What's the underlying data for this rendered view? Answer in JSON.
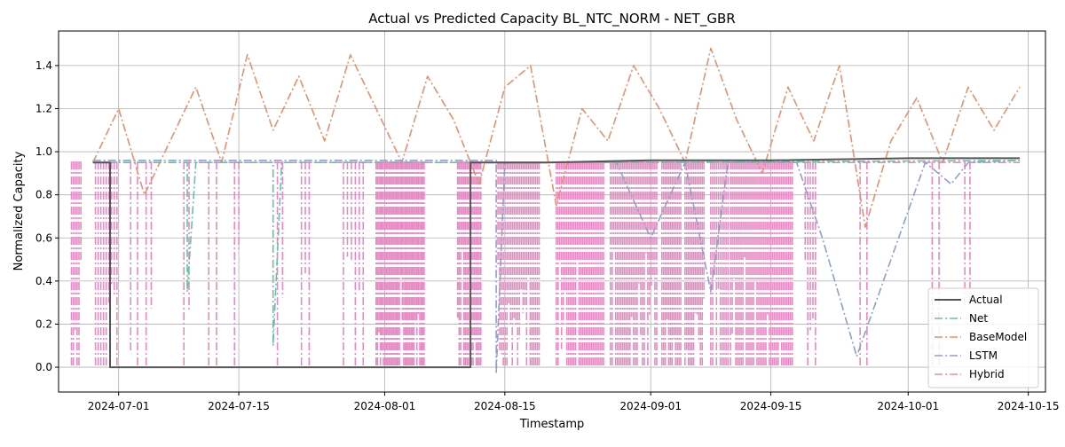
{
  "chart_data": {
    "type": "line",
    "title": "Actual vs Predicted Capacity BL_NTC_NORM - NET_GBR",
    "xlabel": "Timestamp",
    "ylabel": "Normalized Capacity",
    "xlim": [
      "2024-06-24",
      "2024-10-17"
    ],
    "ylim": [
      -0.115,
      1.56
    ],
    "x_ticks": [
      "2024-07-01",
      "2024-07-15",
      "2024-08-01",
      "2024-08-15",
      "2024-09-01",
      "2024-09-15",
      "2024-10-01",
      "2024-10-15"
    ],
    "y_ticks": [
      0.0,
      0.2,
      0.4,
      0.6,
      0.8,
      1.0,
      1.2,
      1.4
    ],
    "y_tick_labels": [
      "0.0",
      "0.2",
      "0.4",
      "0.6",
      "0.8",
      "1.0",
      "1.2",
      "1.4"
    ],
    "grid": true,
    "legend_position": "bottom-right",
    "series": [
      {
        "name": "Actual",
        "color": "#555555",
        "style": "solid",
        "x": [
          "2024-06-28",
          "2024-06-30",
          "2024-06-30",
          "2024-08-11",
          "2024-08-11",
          "2024-08-20",
          "2024-09-01",
          "2024-09-15",
          "2024-10-01",
          "2024-10-14"
        ],
        "values": [
          0.95,
          0.95,
          0.0,
          0.0,
          0.95,
          0.95,
          0.96,
          0.96,
          0.97,
          0.97
        ]
      },
      {
        "name": "Net",
        "color": "#66c2a5",
        "style": "dashdot",
        "x": [
          "2024-06-28",
          "2024-07-09",
          "2024-07-09",
          "2024-07-10",
          "2024-07-19",
          "2024-07-19",
          "2024-07-20",
          "2024-08-01",
          "2024-09-01",
          "2024-10-14"
        ],
        "values": [
          0.95,
          0.95,
          0.35,
          0.95,
          0.95,
          0.1,
          0.95,
          0.95,
          0.95,
          0.96
        ]
      },
      {
        "name": "BaseModel",
        "color": "#e5916c",
        "style": "dashdot",
        "x": [
          "2024-06-28",
          "2024-07-01",
          "2024-07-04",
          "2024-07-07",
          "2024-07-10",
          "2024-07-13",
          "2024-07-16",
          "2024-07-19",
          "2024-07-22",
          "2024-07-25",
          "2024-07-28",
          "2024-07-31",
          "2024-08-03",
          "2024-08-06",
          "2024-08-09",
          "2024-08-12",
          "2024-08-15",
          "2024-08-18",
          "2024-08-21",
          "2024-08-24",
          "2024-08-27",
          "2024-08-30",
          "2024-09-02",
          "2024-09-05",
          "2024-09-08",
          "2024-09-11",
          "2024-09-14",
          "2024-09-17",
          "2024-09-20",
          "2024-09-23",
          "2024-09-26",
          "2024-09-29",
          "2024-10-02",
          "2024-10-05",
          "2024-10-08",
          "2024-10-11",
          "2024-10-14"
        ],
        "values": [
          0.95,
          1.2,
          0.8,
          1.05,
          1.3,
          0.95,
          1.45,
          1.1,
          1.35,
          1.05,
          1.45,
          1.2,
          0.95,
          1.35,
          1.15,
          0.85,
          1.3,
          1.4,
          0.75,
          1.2,
          1.05,
          1.4,
          1.2,
          0.95,
          1.48,
          1.15,
          0.9,
          1.3,
          1.05,
          1.4,
          0.65,
          1.05,
          1.25,
          0.95,
          1.3,
          1.1,
          1.3
        ]
      },
      {
        "name": "LSTM",
        "color": "#8da0cb",
        "style": "dashdot",
        "x": [
          "2024-06-28",
          "2024-08-14",
          "2024-08-14",
          "2024-08-15",
          "2024-08-28",
          "2024-09-01",
          "2024-09-05",
          "2024-09-08",
          "2024-09-10",
          "2024-09-18",
          "2024-09-21",
          "2024-09-25",
          "2024-10-03",
          "2024-10-06",
          "2024-10-08",
          "2024-10-14"
        ],
        "values": [
          0.96,
          0.96,
          -0.03,
          0.95,
          0.95,
          0.6,
          0.95,
          0.35,
          0.95,
          0.95,
          0.6,
          0.05,
          0.95,
          0.85,
          0.95,
          0.96
        ]
      },
      {
        "name": "Hybrid",
        "color": "#e78ac3",
        "style": "dashdot",
        "x": [
          "2024-06-28",
          "2024-10-14"
        ],
        "values": [
          0.95,
          0.95
        ]
      }
    ]
  }
}
